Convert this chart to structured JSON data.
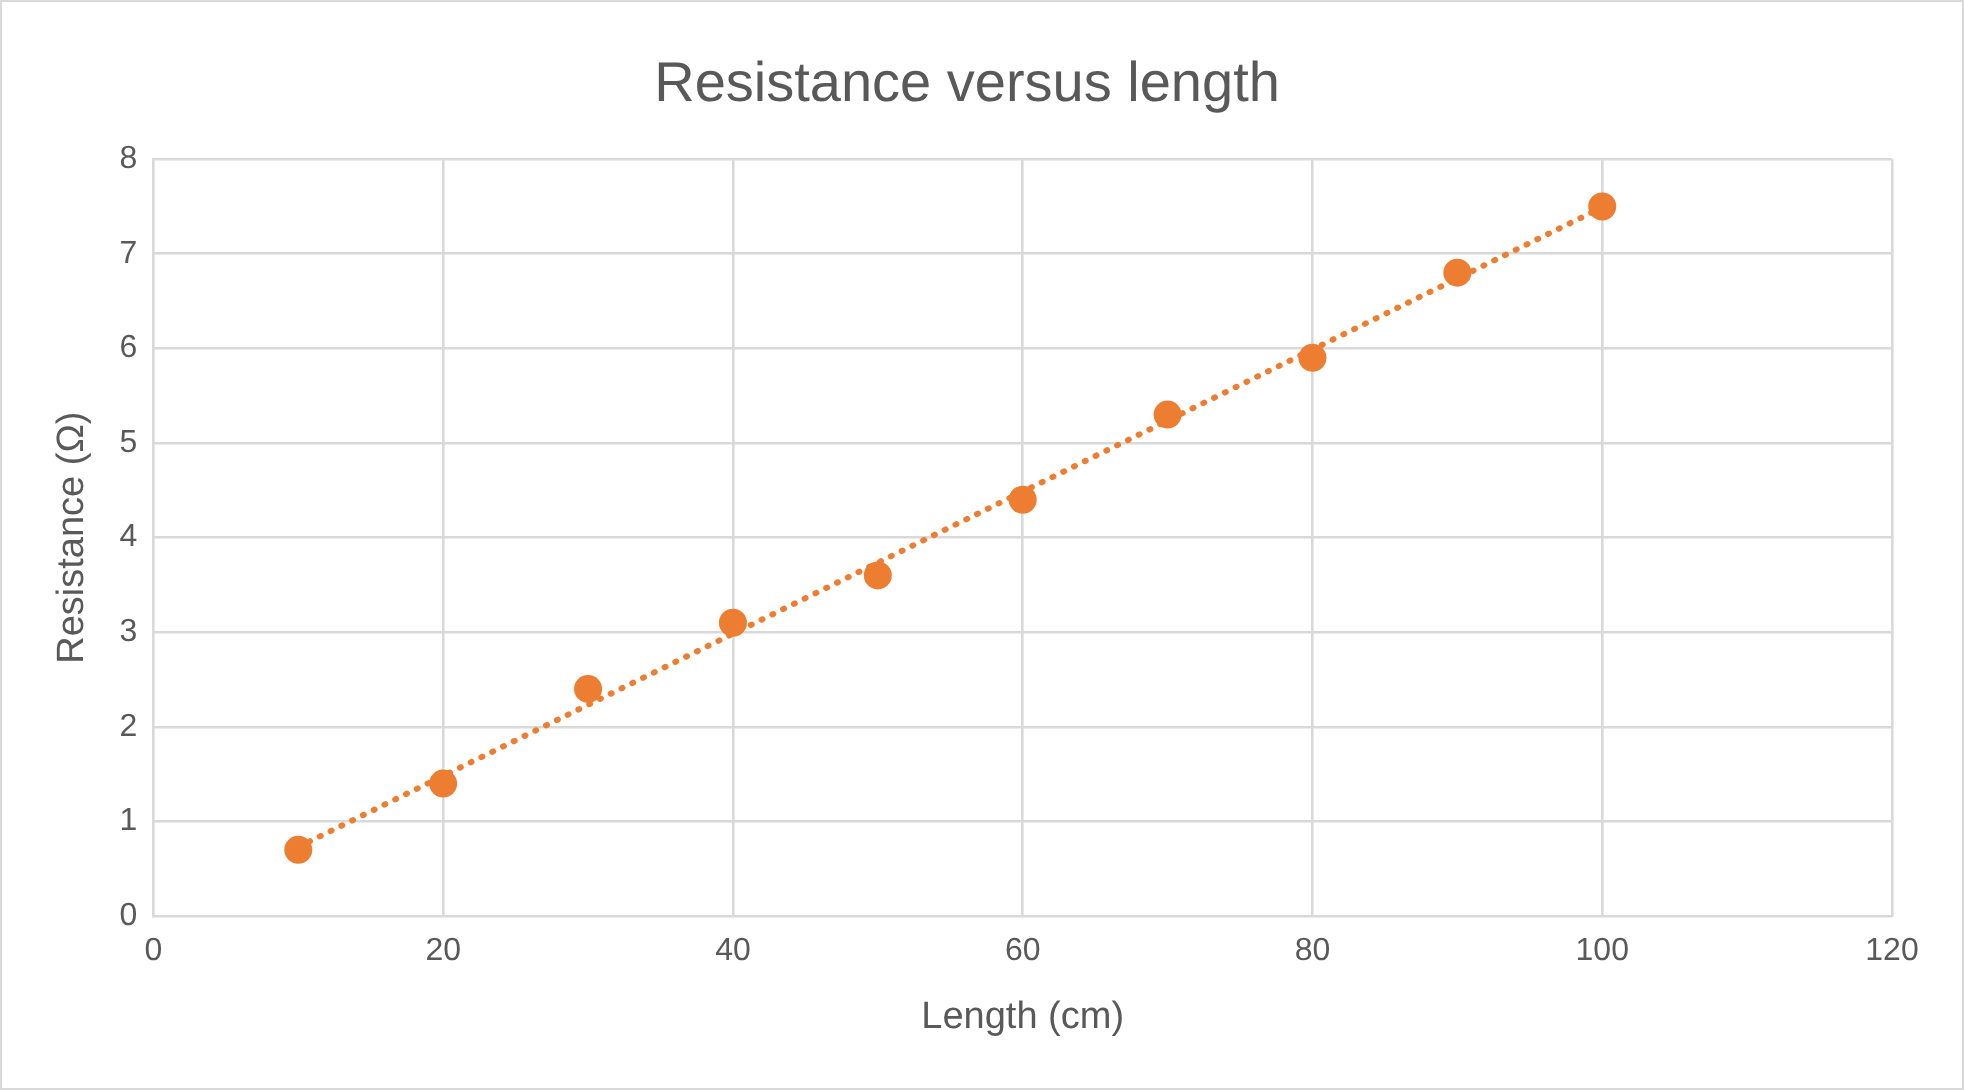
{
  "chart_data": {
    "type": "scatter",
    "title": "Resistance versus length",
    "xlabel": "Length (cm)",
    "ylabel": "Resistance (Ω)",
    "xlim": [
      0,
      120
    ],
    "xticks": [
      0,
      20,
      40,
      60,
      80,
      100,
      120
    ],
    "ylim": [
      0,
      8
    ],
    "yticks": [
      0,
      1,
      2,
      3,
      4,
      5,
      6,
      7,
      8
    ],
    "grid": true,
    "marker": "circle",
    "series": [
      {
        "type": "scatter",
        "color": "#ed7d31",
        "x": [
          10,
          20,
          30,
          40,
          50,
          60,
          70,
          80,
          90,
          100
        ],
        "values": [
          0.7,
          1.4,
          2.4,
          3.1,
          3.6,
          4.4,
          5.3,
          5.9,
          6.8,
          7.5
        ]
      },
      {
        "type": "line",
        "color": "#ed7d31",
        "marker": "none",
        "line_style": "dotted",
        "x": [
          10,
          100
        ],
        "values": [
          0.73,
          7.49
        ]
      }
    ]
  }
}
